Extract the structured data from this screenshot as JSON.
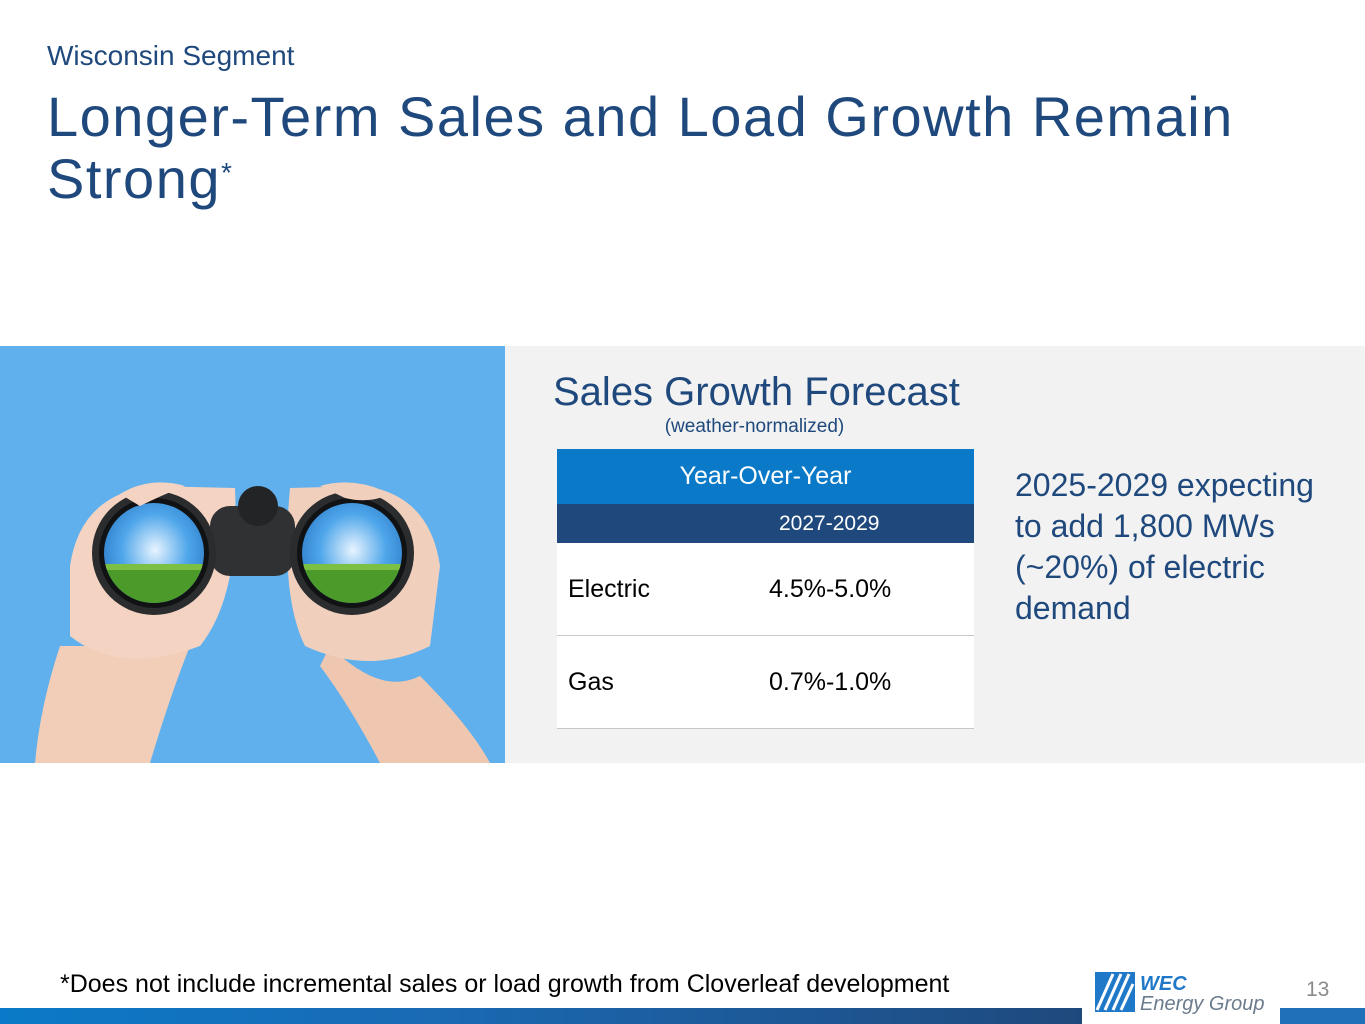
{
  "header": {
    "segment": "Wisconsin Segment",
    "title": "Longer-Term Sales and Load Growth Remain Strong",
    "title_marker": "*"
  },
  "forecast": {
    "title": "Sales Growth Forecast",
    "subtitle": "(weather-normalized)",
    "table": {
      "header_top": "Year-Over-Year",
      "header_period": "2027-2029",
      "rows": [
        {
          "label": "Electric",
          "value": "4.5%-5.0%"
        },
        {
          "label": "Gas",
          "value": "0.7%-1.0%"
        }
      ]
    }
  },
  "callout": "2025-2029 expecting to add 1,800 MWs (~20%) of electric demand",
  "footnote": "*Does not include incremental sales or load growth from Cloverleaf development",
  "logo": {
    "line1": "WEC",
    "line2": "Energy Group"
  },
  "page_number": "13",
  "colors": {
    "brand_dark": "#1f497d",
    "brand_blue": "#0a7ac8",
    "sky": "#5fb0ec",
    "panel": "#f2f2f2"
  }
}
